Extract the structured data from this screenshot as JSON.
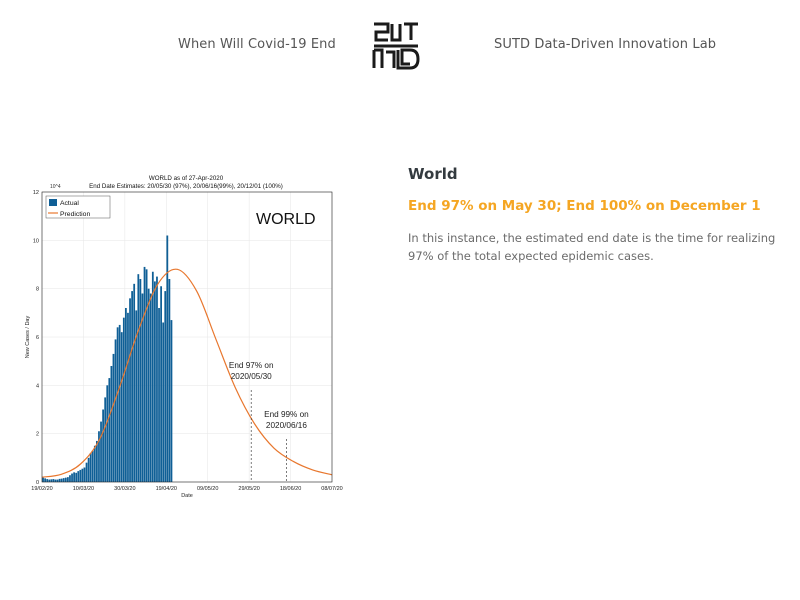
{
  "header": {
    "left_link": "When Will Covid-19 End",
    "right_link": "SUTD Data-Driven Innovation Lab",
    "logo_icon": "sutd-logo-icon"
  },
  "colors": {
    "accent": "#f5a623",
    "bar": "#0f5f96",
    "prediction": "#e8772e",
    "title_text": "#333a3f",
    "body_text": "#6b6b6b"
  },
  "main": {
    "title": "World",
    "subtitle": "End 97% on May 30; End 100% on December 1",
    "description": "In this instance, the estimated end date is the time for realizing 97% of the total expected epidemic cases."
  },
  "chart_data": {
    "type": "bar",
    "title": "WORLD as of 27-Apr-2020",
    "subtitle": "End Date Estimates: 20/05/30 (97%), 20/06/16(99%), 20/12/01 (100%)",
    "overlay_label": "WORLD",
    "xlabel": "Date",
    "ylabel": "New Cases / Day",
    "y_multiplier": "10^4",
    "ylim": [
      0,
      12
    ],
    "xlim_days": [
      0,
      140
    ],
    "x_ticks": [
      {
        "day": 0,
        "label": "19/02/20"
      },
      {
        "day": 20,
        "label": "10/03/20"
      },
      {
        "day": 40,
        "label": "30/03/20"
      },
      {
        "day": 60,
        "label": "19/04/20"
      },
      {
        "day": 80,
        "label": "09/05/20"
      },
      {
        "day": 100,
        "label": "29/05/20"
      },
      {
        "day": 120,
        "label": "18/06/20"
      },
      {
        "day": 140,
        "label": "08/07/20"
      }
    ],
    "y_ticks": [
      0,
      2,
      4,
      6,
      8,
      10,
      12
    ],
    "legend": [
      "Actual",
      "Prediction"
    ],
    "legend_position": "top-left",
    "series": [
      {
        "name": "Actual",
        "start_day": 0,
        "values": [
          0.18,
          0.15,
          0.12,
          0.1,
          0.11,
          0.12,
          0.1,
          0.1,
          0.13,
          0.14,
          0.16,
          0.18,
          0.2,
          0.28,
          0.35,
          0.4,
          0.38,
          0.45,
          0.5,
          0.55,
          0.6,
          0.8,
          1.0,
          1.2,
          1.3,
          1.5,
          1.7,
          2.1,
          2.5,
          3.0,
          3.5,
          4.0,
          4.3,
          4.8,
          5.3,
          5.9,
          6.4,
          6.5,
          6.2,
          6.8,
          7.2,
          7.0,
          7.6,
          7.9,
          8.2,
          7.1,
          8.6,
          8.4,
          7.8,
          8.9,
          8.8,
          8.0,
          7.8,
          8.7,
          8.3,
          8.5,
          7.2,
          8.1,
          6.6,
          7.9,
          10.2,
          8.4,
          6.7
        ]
      },
      {
        "name": "Prediction",
        "start_day": 0,
        "peak_day": 54,
        "peak_value": 8.8,
        "values": [
          0.2,
          0.32,
          0.75,
          1.8,
          3.9,
          6.3,
          8.2,
          8.8,
          7.9,
          5.9,
          3.9,
          2.4,
          1.4,
          0.85,
          0.5,
          0.3
        ]
      }
    ],
    "annotations": [
      {
        "day": 101,
        "label_line1": "End 97% on",
        "label_line2": "2020/05/30"
      },
      {
        "day": 118,
        "label_line1": "End 99% on",
        "label_line2": "2020/06/16"
      }
    ]
  }
}
